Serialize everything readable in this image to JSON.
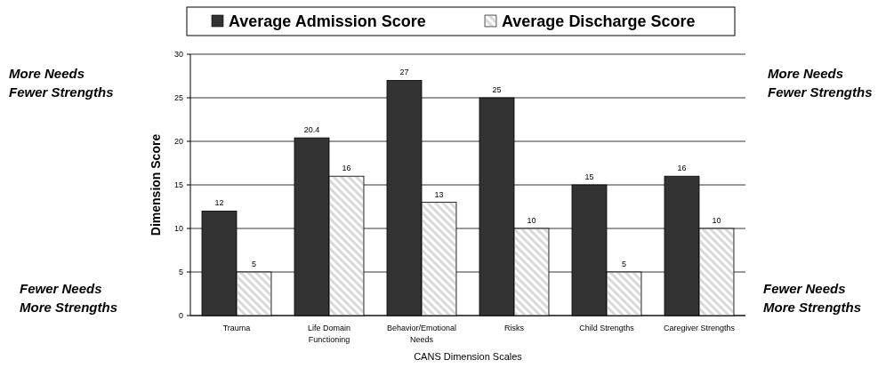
{
  "chart_data": {
    "type": "bar",
    "xlabel": "CANS Dimension Scales",
    "ylabel": "Dimension Score",
    "categories": [
      "Trauma",
      "Life Domain Functioning",
      "Behavior/Emotional Needs",
      "Risks",
      "Child Strengths",
      "Caregiver Strengths"
    ],
    "series": [
      {
        "name": "Average Admission Score",
        "color": "#333333",
        "values": [
          12,
          20.4,
          27,
          25,
          15,
          16
        ]
      },
      {
        "name": "Average Discharge Score",
        "color": "#d9d9d9",
        "values": [
          5,
          16,
          13,
          10,
          5,
          10
        ]
      }
    ],
    "ylim": [
      0,
      30
    ],
    "yticks": [
      0,
      5,
      10,
      15,
      20,
      25,
      30
    ],
    "grid": "y",
    "legend": "top",
    "data_labels": true,
    "annotations": [
      "More Needs\nFewer Strengths",
      "Fewer Needs\nMore Strengths",
      "More Needs\nFewer Strengths",
      "Fewer Needs\nMore Strengths"
    ]
  }
}
